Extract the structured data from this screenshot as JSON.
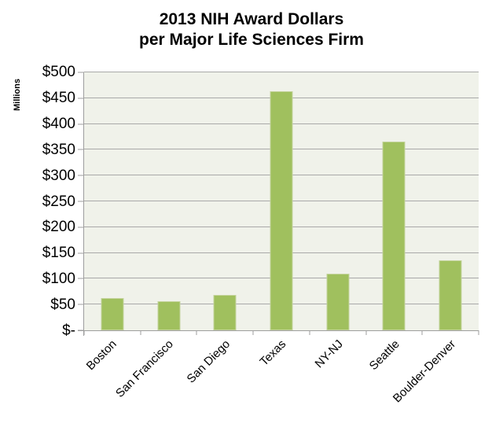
{
  "title": {
    "line1": "2013 NIH Award Dollars",
    "line2": "per Major Life Sciences Firm"
  },
  "chart_data": {
    "type": "bar",
    "title": "2013 NIH Award Dollars per Major Life Sciences Firm",
    "categories": [
      "Boston",
      "San Francisco",
      "San Diego",
      "Texas",
      "NY-NJ",
      "Seattle",
      "Boulder-Denver"
    ],
    "values": [
      62,
      57,
      69,
      463,
      110,
      366,
      136
    ],
    "xlabel": "",
    "ylabel": "Millions",
    "ylim": [
      0,
      500
    ],
    "ytick_interval": 50,
    "ytick_labels_top_down": [
      "$500",
      "$450",
      "$400",
      "$350",
      "$300",
      "$250",
      "$200",
      "$150",
      "$100",
      "$50",
      "$-"
    ],
    "grid": true,
    "legend": false,
    "colors": {
      "bar_fill": "#A0C05E",
      "bar_border": "#C5D49E",
      "plot_bg": "#F0F2EA",
      "gridline": "#A9A9A9",
      "axis": "#9E9E9E",
      "text": "#000000"
    }
  }
}
